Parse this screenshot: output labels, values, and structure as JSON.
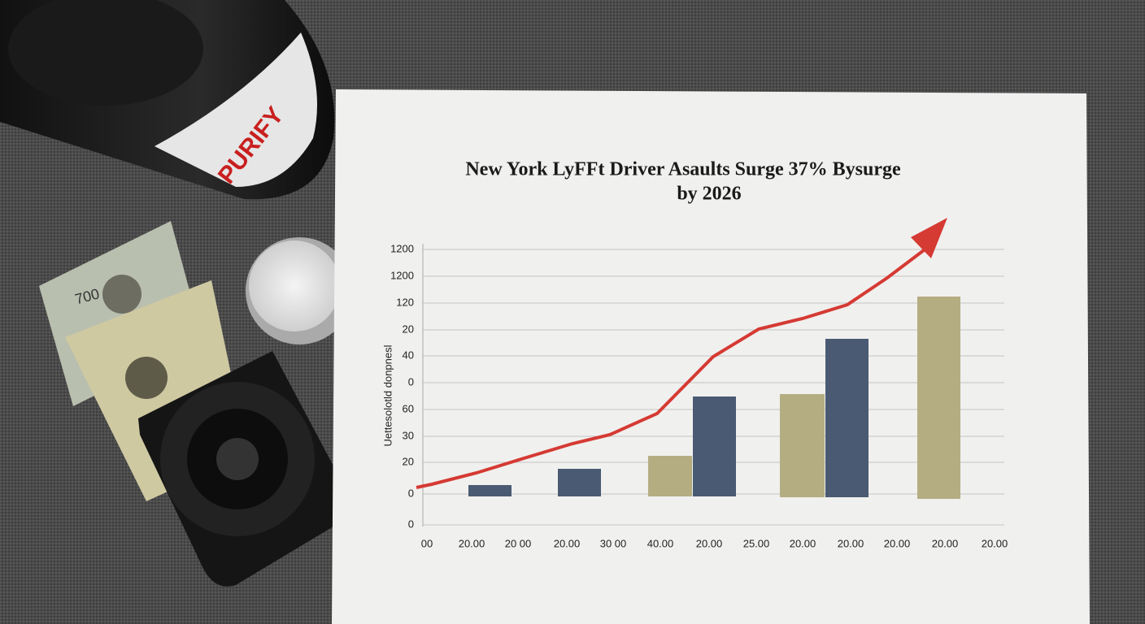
{
  "photo": {
    "chart": {
      "title_lines": [
        "New York LyFFt Driver Asaults Surge 37% Bysurge",
        "by 2026"
      ],
      "y_axis_label": "Uettesolotld donpnesl",
      "y_labels": [
        "1200",
        "1200",
        "120",
        "20",
        "40",
        "0",
        "60",
        "30",
        "20",
        "0",
        "0"
      ],
      "x_labels": [
        "00",
        "20.00",
        "20 00",
        "20.00",
        "30 00",
        "40.00",
        "20.00",
        "25.00",
        "20.00",
        "20.00",
        "20.00",
        "20.00",
        "20.00"
      ]
    },
    "can_label": "PURIFY",
    "banknote_label": "700"
  }
}
